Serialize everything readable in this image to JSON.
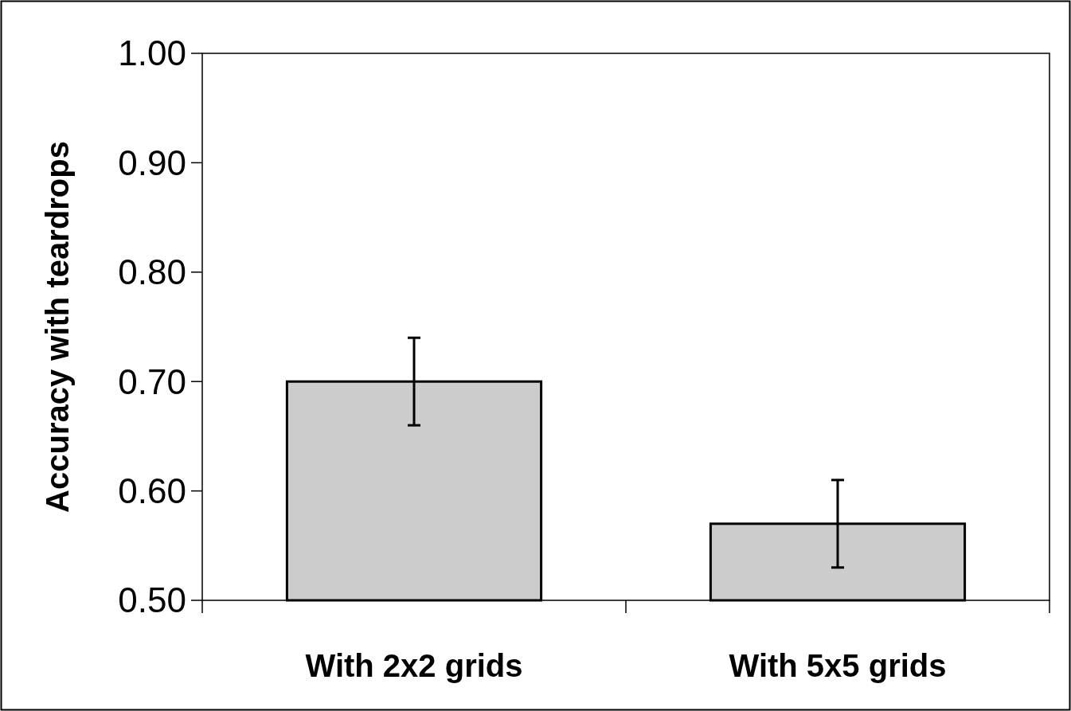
{
  "chart_data": {
    "type": "bar",
    "ylabel": "Accuracy with teardrops",
    "categories": [
      "With 2x2 grids",
      "With 5x5 grids"
    ],
    "series": [
      {
        "color": "#cccccc",
        "values": [
          0.7,
          0.57
        ],
        "errors": [
          0.04,
          0.04
        ]
      }
    ],
    "ylim": [
      0.5,
      1.0
    ],
    "yticks": [
      {
        "value": 0.5,
        "label": "0.50"
      },
      {
        "value": 0.6,
        "label": "0.60"
      },
      {
        "value": 0.7,
        "label": "0.70"
      },
      {
        "value": 0.8,
        "label": "0.80"
      },
      {
        "value": 0.9,
        "label": "0.90"
      },
      {
        "value": 1.0,
        "label": "1.00"
      }
    ],
    "grid": false
  }
}
